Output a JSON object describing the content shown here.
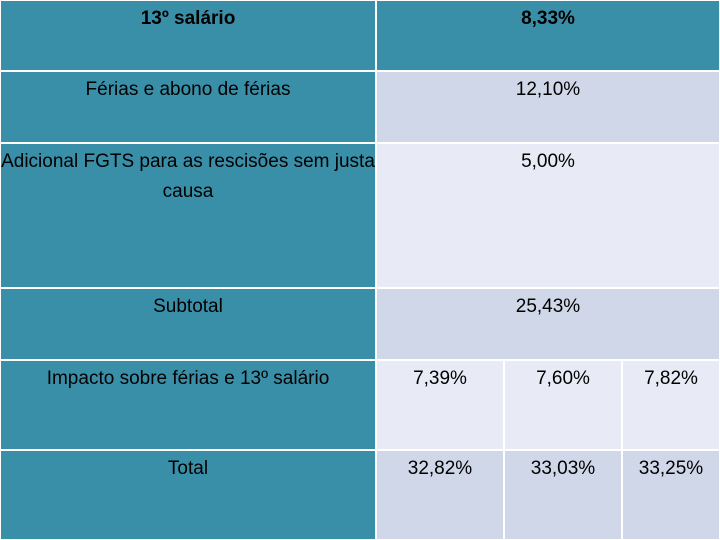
{
  "rows": [
    {
      "label": "13º salário",
      "value": "8,33%"
    },
    {
      "label": "Férias e abono de férias",
      "value": "12,10%"
    },
    {
      "label": "Adicional FGTS para as rescisões sem justa causa",
      "value": "5,00%"
    },
    {
      "label": "Subtotal",
      "value": "25,43%"
    },
    {
      "label": "Impacto sobre férias e 13º salário",
      "values": [
        "7,39%",
        "7,60%",
        "7,82%"
      ]
    },
    {
      "label": "Total",
      "values": [
        "32,82%",
        "33,03%",
        "33,25%"
      ]
    }
  ],
  "colors": {
    "label_bg": "#3a8fa8",
    "value_bg_dark": "#cfd7e8",
    "value_bg_light": "#e8ebf5"
  }
}
